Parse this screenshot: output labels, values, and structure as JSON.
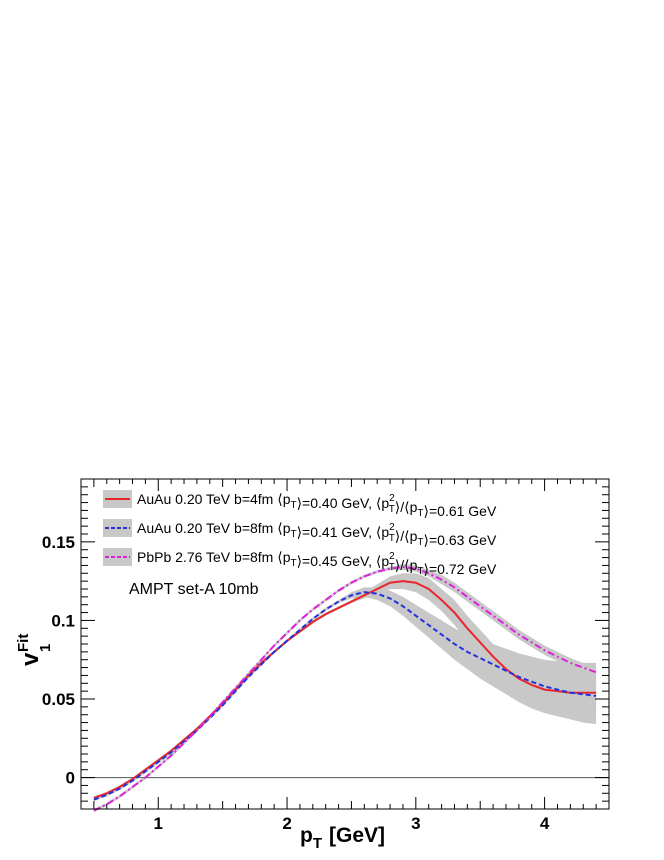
{
  "chart_data": {
    "type": "line",
    "title": "",
    "xlabel": "p",
    "xlabel_sub": "T",
    "xlabel_unit": "[GeV]",
    "ylabel": "v",
    "ylabel_sub": "1",
    "ylabel_sup": "Fit",
    "xlim": [
      0.4,
      4.5
    ],
    "ylim": [
      -0.02,
      0.19
    ],
    "x_ticks": [
      1,
      2,
      3,
      4
    ],
    "x_tick_labels": [
      "1",
      "2",
      "3",
      "4"
    ],
    "y_ticks": [
      0,
      0.05,
      0.1,
      0.15
    ],
    "y_tick_labels": [
      "0",
      "0.05",
      "0.1",
      "0.15"
    ],
    "annotation": "AMPT set-A 10mb",
    "legend_position": "top-left",
    "reference_line_y": 0,
    "series": [
      {
        "name": "AuAu 0.20 TeV b=4fm",
        "legend_part1": "AuAu 0.20 TeV b=4fm",
        "legend_part2": "⟨p",
        "legend_part2_sub": "T",
        "legend_part3": "⟩=0.40 GeV, ⟨p",
        "legend_part3_sup": "2",
        "legend_part3_sub": "T",
        "legend_part4": "⟩/⟨p",
        "legend_part4_sub": "T",
        "legend_part5": "⟩=0.61 GeV",
        "color": "#e8262c",
        "dash": "solid",
        "x": [
          0.5,
          0.6,
          0.7,
          0.8,
          0.9,
          1.0,
          1.1,
          1.2,
          1.3,
          1.4,
          1.5,
          1.6,
          1.7,
          1.8,
          1.9,
          2.0,
          2.1,
          2.2,
          2.3,
          2.4,
          2.5,
          2.6,
          2.7,
          2.8,
          2.9,
          3.0,
          3.1,
          3.2,
          3.3,
          3.4,
          3.5,
          3.6,
          3.7,
          3.8,
          3.9,
          4.0,
          4.1,
          4.2,
          4.3,
          4.4
        ],
        "y": [
          -0.013,
          -0.01,
          -0.006,
          -0.001,
          0.005,
          0.011,
          0.017,
          0.024,
          0.031,
          0.039,
          0.047,
          0.056,
          0.065,
          0.073,
          0.08,
          0.087,
          0.093,
          0.099,
          0.104,
          0.108,
          0.112,
          0.116,
          0.12,
          0.124,
          0.125,
          0.124,
          0.12,
          0.113,
          0.105,
          0.095,
          0.086,
          0.077,
          0.069,
          0.063,
          0.059,
          0.056,
          0.055,
          0.054,
          0.054,
          0.054
        ],
        "band_low": [
          -0.014,
          -0.011,
          -0.007,
          -0.002,
          0.004,
          0.01,
          0.016,
          0.023,
          0.03,
          0.038,
          0.046,
          0.055,
          0.064,
          0.072,
          0.079,
          0.086,
          0.092,
          0.098,
          0.103,
          0.107,
          0.111,
          0.114,
          0.117,
          0.12,
          0.12,
          0.118,
          0.113,
          0.106,
          0.097,
          0.087,
          0.078,
          0.069,
          0.061,
          0.055,
          0.051,
          0.049,
          0.047,
          0.046,
          0.045,
          0.045
        ],
        "band_high": [
          -0.012,
          -0.009,
          -0.005,
          0.0,
          0.006,
          0.012,
          0.018,
          0.025,
          0.032,
          0.04,
          0.048,
          0.057,
          0.066,
          0.074,
          0.081,
          0.088,
          0.094,
          0.1,
          0.105,
          0.109,
          0.113,
          0.118,
          0.123,
          0.128,
          0.13,
          0.13,
          0.127,
          0.12,
          0.113,
          0.103,
          0.094,
          0.085,
          0.077,
          0.071,
          0.067,
          0.064,
          0.063,
          0.062,
          0.063,
          0.063
        ]
      },
      {
        "name": "AuAu 0.20 TeV b=8fm",
        "legend_part1": "AuAu 0.20 TeV b=8fm",
        "legend_part2": "⟨p",
        "legend_part2_sub": "T",
        "legend_part3": "⟩=0.41 GeV, ⟨p",
        "legend_part3_sup": "2",
        "legend_part3_sub": "T",
        "legend_part4": "⟩/⟨p",
        "legend_part4_sub": "T",
        "legend_part5": "⟩=0.63 GeV",
        "color": "#2233dd",
        "dash": "dashed",
        "x": [
          0.5,
          0.6,
          0.7,
          0.8,
          0.9,
          1.0,
          1.1,
          1.2,
          1.3,
          1.4,
          1.5,
          1.6,
          1.7,
          1.8,
          1.9,
          2.0,
          2.1,
          2.2,
          2.3,
          2.4,
          2.5,
          2.6,
          2.7,
          2.8,
          2.9,
          3.0,
          3.1,
          3.2,
          3.3,
          3.4,
          3.5,
          3.6,
          3.7,
          3.8,
          3.9,
          4.0,
          4.1,
          4.2,
          4.3,
          4.4
        ],
        "y": [
          -0.014,
          -0.011,
          -0.007,
          -0.002,
          0.004,
          0.01,
          0.016,
          0.023,
          0.03,
          0.038,
          0.046,
          0.055,
          0.064,
          0.072,
          0.08,
          0.087,
          0.094,
          0.101,
          0.107,
          0.112,
          0.116,
          0.118,
          0.117,
          0.114,
          0.109,
          0.103,
          0.097,
          0.091,
          0.085,
          0.08,
          0.076,
          0.072,
          0.068,
          0.064,
          0.061,
          0.058,
          0.056,
          0.054,
          0.053,
          0.052
        ],
        "band_low": [
          -0.015,
          -0.012,
          -0.008,
          -0.003,
          0.003,
          0.009,
          0.015,
          0.022,
          0.029,
          0.037,
          0.045,
          0.054,
          0.063,
          0.071,
          0.079,
          0.086,
          0.093,
          0.1,
          0.106,
          0.111,
          0.114,
          0.115,
          0.113,
          0.109,
          0.103,
          0.096,
          0.089,
          0.082,
          0.075,
          0.069,
          0.063,
          0.058,
          0.053,
          0.048,
          0.044,
          0.041,
          0.039,
          0.037,
          0.035,
          0.034
        ],
        "band_high": [
          -0.013,
          -0.01,
          -0.006,
          -0.001,
          0.005,
          0.011,
          0.017,
          0.024,
          0.031,
          0.039,
          0.047,
          0.056,
          0.065,
          0.073,
          0.081,
          0.088,
          0.095,
          0.102,
          0.108,
          0.113,
          0.118,
          0.121,
          0.121,
          0.119,
          0.115,
          0.11,
          0.105,
          0.1,
          0.095,
          0.091,
          0.088,
          0.085,
          0.082,
          0.079,
          0.077,
          0.075,
          0.074,
          0.073,
          0.073,
          0.073
        ]
      },
      {
        "name": "PbPb 2.76 TeV b=8fm",
        "legend_part1": "PbPb 2.76 TeV b=8fm",
        "legend_part2": "⟨p",
        "legend_part2_sub": "T",
        "legend_part3": "⟩=0.45 GeV, ⟨p",
        "legend_part3_sup": "2",
        "legend_part3_sub": "T",
        "legend_part4": "⟩/⟨p",
        "legend_part4_sub": "T",
        "legend_part5": "⟩=0.72 GeV",
        "color": "#dd22dd",
        "dash": "dashdot",
        "x": [
          0.5,
          0.6,
          0.7,
          0.8,
          0.9,
          1.0,
          1.1,
          1.2,
          1.3,
          1.4,
          1.5,
          1.6,
          1.7,
          1.8,
          1.9,
          2.0,
          2.1,
          2.2,
          2.3,
          2.4,
          2.5,
          2.6,
          2.7,
          2.8,
          2.9,
          3.0,
          3.1,
          3.2,
          3.3,
          3.4,
          3.5,
          3.6,
          3.7,
          3.8,
          3.9,
          4.0,
          4.1,
          4.2,
          4.3,
          4.4
        ],
        "y": [
          -0.021,
          -0.017,
          -0.012,
          -0.006,
          0.0,
          0.007,
          0.014,
          0.022,
          0.03,
          0.039,
          0.048,
          0.057,
          0.066,
          0.075,
          0.084,
          0.092,
          0.1,
          0.107,
          0.113,
          0.119,
          0.124,
          0.128,
          0.131,
          0.133,
          0.134,
          0.133,
          0.13,
          0.126,
          0.121,
          0.115,
          0.109,
          0.103,
          0.097,
          0.091,
          0.086,
          0.081,
          0.077,
          0.073,
          0.07,
          0.067
        ],
        "band_low": [
          -0.022,
          -0.018,
          -0.013,
          -0.007,
          -0.001,
          0.006,
          0.013,
          0.021,
          0.029,
          0.038,
          0.047,
          0.056,
          0.065,
          0.074,
          0.083,
          0.091,
          0.099,
          0.106,
          0.112,
          0.118,
          0.123,
          0.127,
          0.13,
          0.132,
          0.132,
          0.131,
          0.128,
          0.123,
          0.118,
          0.112,
          0.106,
          0.1,
          0.094,
          0.088,
          0.083,
          0.078,
          0.074,
          0.07,
          0.067,
          0.064
        ],
        "band_high": [
          -0.02,
          -0.016,
          -0.011,
          -0.005,
          0.001,
          0.008,
          0.015,
          0.023,
          0.031,
          0.04,
          0.049,
          0.058,
          0.067,
          0.076,
          0.085,
          0.093,
          0.101,
          0.108,
          0.114,
          0.12,
          0.125,
          0.129,
          0.132,
          0.134,
          0.136,
          0.135,
          0.132,
          0.129,
          0.124,
          0.118,
          0.112,
          0.106,
          0.1,
          0.094,
          0.089,
          0.084,
          0.08,
          0.076,
          0.073,
          0.07
        ]
      }
    ]
  }
}
